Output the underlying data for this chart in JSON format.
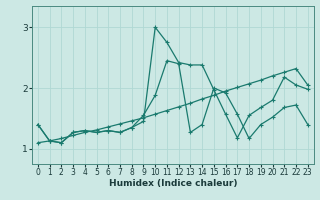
{
  "xlabel": "Humidex (Indice chaleur)",
  "bg_color": "#cce8e4",
  "grid_color": "#b0d8d4",
  "line_color": "#1a7a6e",
  "xlim": [
    -0.5,
    23.5
  ],
  "ylim": [
    0.75,
    3.35
  ],
  "yticks": [
    1,
    2,
    3
  ],
  "xticks": [
    0,
    1,
    2,
    3,
    4,
    5,
    6,
    7,
    8,
    9,
    10,
    11,
    12,
    13,
    14,
    15,
    16,
    17,
    18,
    19,
    20,
    21,
    22,
    23
  ],
  "series_volatile_x": [
    0,
    1,
    2,
    3,
    4,
    5,
    6,
    7,
    8,
    9,
    10,
    11,
    12,
    13,
    14,
    15,
    16,
    17,
    18,
    19,
    20,
    21,
    22,
    23
  ],
  "series_volatile_y": [
    1.4,
    1.13,
    1.1,
    1.27,
    1.3,
    1.27,
    1.3,
    1.27,
    1.35,
    1.45,
    3.0,
    2.75,
    2.42,
    2.38,
    2.38,
    1.97,
    1.57,
    1.18,
    1.55,
    1.68,
    1.8,
    2.18,
    2.05,
    1.98
  ],
  "series_mid_x": [
    0,
    1,
    2,
    3,
    4,
    5,
    6,
    7,
    8,
    9,
    10,
    11,
    12,
    13,
    14,
    15,
    16,
    17,
    18,
    19,
    20,
    21,
    22,
    23
  ],
  "series_mid_y": [
    1.4,
    1.13,
    1.1,
    1.27,
    1.3,
    1.27,
    1.3,
    1.27,
    1.35,
    1.55,
    1.88,
    2.45,
    2.4,
    1.27,
    1.4,
    2.0,
    1.92,
    1.57,
    1.17,
    1.4,
    1.52,
    1.68,
    1.72,
    1.4
  ],
  "series_trend_x": [
    0,
    1,
    2,
    3,
    4,
    5,
    6,
    7,
    8,
    9,
    10,
    11,
    12,
    13,
    14,
    15,
    16,
    17,
    18,
    19,
    20,
    21,
    22,
    23
  ],
  "series_trend_y": [
    1.1,
    1.13,
    1.17,
    1.22,
    1.27,
    1.31,
    1.36,
    1.41,
    1.46,
    1.51,
    1.57,
    1.63,
    1.69,
    1.75,
    1.82,
    1.88,
    1.95,
    2.01,
    2.07,
    2.13,
    2.2,
    2.26,
    2.32,
    2.05
  ]
}
